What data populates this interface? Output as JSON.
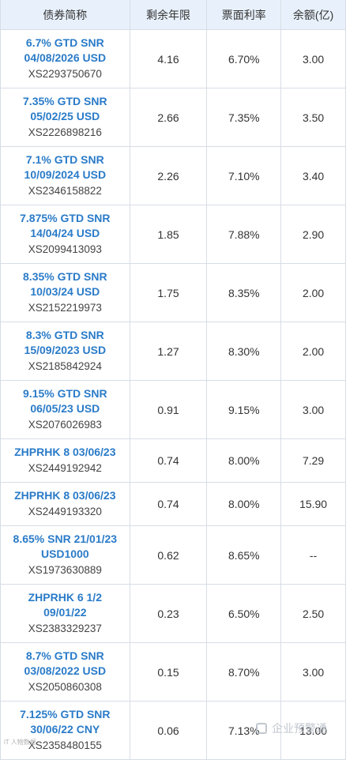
{
  "header": {
    "col1": "债券简称",
    "col2": "剩余年限",
    "col3": "票面利率",
    "col4": "余额(亿)"
  },
  "rows": [
    {
      "name_l1": "6.7% GTD SNR",
      "name_l2": "04/08/2026 USD",
      "code": "XS2293750670",
      "years": "4.16",
      "coupon": "6.70%",
      "balance": "3.00"
    },
    {
      "name_l1": "7.35% GTD SNR",
      "name_l2": "05/02/25 USD",
      "code": "XS2226898216",
      "years": "2.66",
      "coupon": "7.35%",
      "balance": "3.50"
    },
    {
      "name_l1": "7.1% GTD SNR",
      "name_l2": "10/09/2024 USD",
      "code": "XS2346158822",
      "years": "2.26",
      "coupon": "7.10%",
      "balance": "3.40"
    },
    {
      "name_l1": "7.875% GTD SNR",
      "name_l2": "14/04/24 USD",
      "code": "XS2099413093",
      "years": "1.85",
      "coupon": "7.88%",
      "balance": "2.90"
    },
    {
      "name_l1": "8.35% GTD SNR",
      "name_l2": "10/03/24 USD",
      "code": "XS2152219973",
      "years": "1.75",
      "coupon": "8.35%",
      "balance": "2.00"
    },
    {
      "name_l1": "8.3% GTD SNR",
      "name_l2": "15/09/2023 USD",
      "code": "XS2185842924",
      "years": "1.27",
      "coupon": "8.30%",
      "balance": "2.00"
    },
    {
      "name_l1": "9.15% GTD SNR",
      "name_l2": "06/05/23 USD",
      "code": "XS2076026983",
      "years": "0.91",
      "coupon": "9.15%",
      "balance": "3.00"
    },
    {
      "name_l1": "ZHPRHK 8 03/06/23",
      "name_l2": "",
      "code": "XS2449192942",
      "years": "0.74",
      "coupon": "8.00%",
      "balance": "7.29"
    },
    {
      "name_l1": "ZHPRHK 8 03/06/23",
      "name_l2": "",
      "code": "XS2449193320",
      "years": "0.74",
      "coupon": "8.00%",
      "balance": "15.90"
    },
    {
      "name_l1": "8.65% SNR 21/01/23",
      "name_l2": "USD1000",
      "code": "XS1973630889",
      "years": "0.62",
      "coupon": "8.65%",
      "balance": "--"
    },
    {
      "name_l1": "ZHPRHK 6 1/2",
      "name_l2": "09/01/22",
      "code": "XS2383329237",
      "years": "0.23",
      "coupon": "6.50%",
      "balance": "2.50"
    },
    {
      "name_l1": "8.7% GTD SNR",
      "name_l2": "03/08/2022 USD",
      "code": "XS2050860308",
      "years": "0.15",
      "coupon": "8.70%",
      "balance": "3.00"
    },
    {
      "name_l1": "7.125% GTD SNR",
      "name_l2": "30/06/22 CNY",
      "code": "XS2358480155",
      "years": "0.06",
      "coupon": "7.13%",
      "balance": "13.00"
    }
  ],
  "watermark": {
    "text": "企业预警通"
  },
  "corner": {
    "text": "iT 人物数据"
  },
  "colors": {
    "header_bg": "#e8f1fb",
    "link": "#2a7bc8",
    "border": "#d7dde6"
  }
}
